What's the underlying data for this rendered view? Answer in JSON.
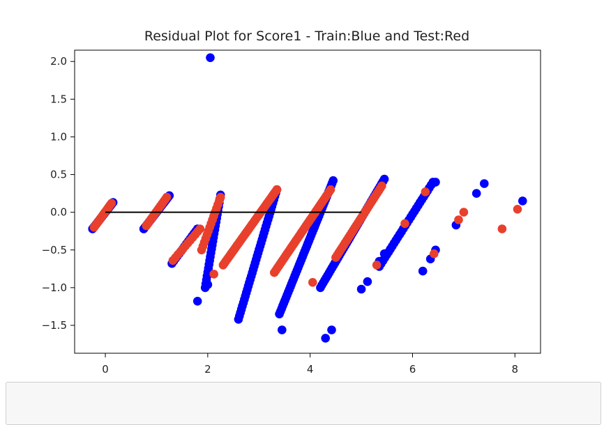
{
  "chart_data": {
    "type": "scatter",
    "title": "Residual Plot for Score1 - Train:Blue and Test:Red",
    "xlabel": "",
    "ylabel": "",
    "xlim": [
      -0.6,
      8.5
    ],
    "ylim": [
      -1.87,
      2.15
    ],
    "xticks": [
      0,
      2,
      4,
      6,
      8
    ],
    "yticks": [
      -1.5,
      -1.0,
      -0.5,
      0.0,
      0.5,
      1.0,
      1.5,
      2.0
    ],
    "xtick_labels": [
      "0",
      "2",
      "4",
      "6",
      "8"
    ],
    "ytick_labels": [
      "−1.5",
      "−1.0",
      "−0.5",
      "0.0",
      "0.5",
      "1.0",
      "1.5",
      "2.0"
    ],
    "reference_line": {
      "x": [
        0,
        5
      ],
      "y": [
        0,
        0
      ],
      "color": "#000000"
    },
    "series": [
      {
        "color": "#0000ff",
        "role": "train",
        "segments": [
          {
            "x": [
              -0.25,
              0.15
            ],
            "y": [
              -0.22,
              0.13
            ],
            "n": 20
          },
          {
            "x": [
              0.75,
              1.25
            ],
            "y": [
              -0.22,
              0.22
            ],
            "n": 20
          },
          {
            "x": [
              1.3,
              1.8
            ],
            "y": [
              -0.68,
              -0.22
            ],
            "n": 15
          },
          {
            "x": [
              1.95,
              2.25
            ],
            "y": [
              -1.0,
              0.23
            ],
            "n": 25
          },
          {
            "x": [
              2.6,
              3.35
            ],
            "y": [
              -1.42,
              0.3
            ],
            "n": 40
          },
          {
            "x": [
              3.4,
              4.45
            ],
            "y": [
              -1.35,
              0.42
            ],
            "n": 50
          },
          {
            "x": [
              4.2,
              5.45
            ],
            "y": [
              -1.0,
              0.44
            ],
            "n": 45
          },
          {
            "x": [
              5.35,
              6.4
            ],
            "y": [
              -0.72,
              0.4
            ],
            "n": 30
          }
        ],
        "points": [
          {
            "x": 2.05,
            "y": 2.05
          },
          {
            "x": 1.8,
            "y": -1.18
          },
          {
            "x": 2.0,
            "y": -0.96
          },
          {
            "x": 3.45,
            "y": -1.56
          },
          {
            "x": 4.3,
            "y": -1.67
          },
          {
            "x": 4.42,
            "y": -1.56
          },
          {
            "x": 5.0,
            "y": -1.02
          },
          {
            "x": 5.12,
            "y": -0.92
          },
          {
            "x": 5.35,
            "y": -0.65
          },
          {
            "x": 5.45,
            "y": -0.55
          },
          {
            "x": 6.2,
            "y": -0.78
          },
          {
            "x": 6.35,
            "y": -0.62
          },
          {
            "x": 6.45,
            "y": -0.5
          },
          {
            "x": 6.45,
            "y": 0.4
          },
          {
            "x": 6.85,
            "y": -0.17
          },
          {
            "x": 7.25,
            "y": 0.25
          },
          {
            "x": 7.4,
            "y": 0.38
          },
          {
            "x": 8.15,
            "y": 0.15
          }
        ]
      },
      {
        "color": "#e8402c",
        "role": "test",
        "segments": [
          {
            "x": [
              -0.22,
              0.12
            ],
            "y": [
              -0.2,
              0.12
            ],
            "n": 14
          },
          {
            "x": [
              0.8,
              1.2
            ],
            "y": [
              -0.18,
              0.2
            ],
            "n": 14
          },
          {
            "x": [
              1.32,
              1.85
            ],
            "y": [
              -0.64,
              -0.22
            ],
            "n": 12
          },
          {
            "x": [
              1.88,
              2.25
            ],
            "y": [
              -0.5,
              0.2
            ],
            "n": 15
          },
          {
            "x": [
              2.3,
              3.35
            ],
            "y": [
              -0.7,
              0.3
            ],
            "n": 40
          },
          {
            "x": [
              3.3,
              4.4
            ],
            "y": [
              -0.8,
              0.3
            ],
            "n": 40
          },
          {
            "x": [
              4.5,
              5.4
            ],
            "y": [
              -0.6,
              0.35
            ],
            "n": 30
          }
        ],
        "points": [
          {
            "x": 2.12,
            "y": -0.82
          },
          {
            "x": 4.05,
            "y": -0.93
          },
          {
            "x": 5.3,
            "y": -0.7
          },
          {
            "x": 5.85,
            "y": -0.15
          },
          {
            "x": 6.25,
            "y": 0.27
          },
          {
            "x": 6.42,
            "y": -0.55
          },
          {
            "x": 6.9,
            "y": -0.1
          },
          {
            "x": 7.0,
            "y": 0.0
          },
          {
            "x": 7.75,
            "y": -0.22
          },
          {
            "x": 8.05,
            "y": 0.04
          }
        ]
      }
    ]
  }
}
